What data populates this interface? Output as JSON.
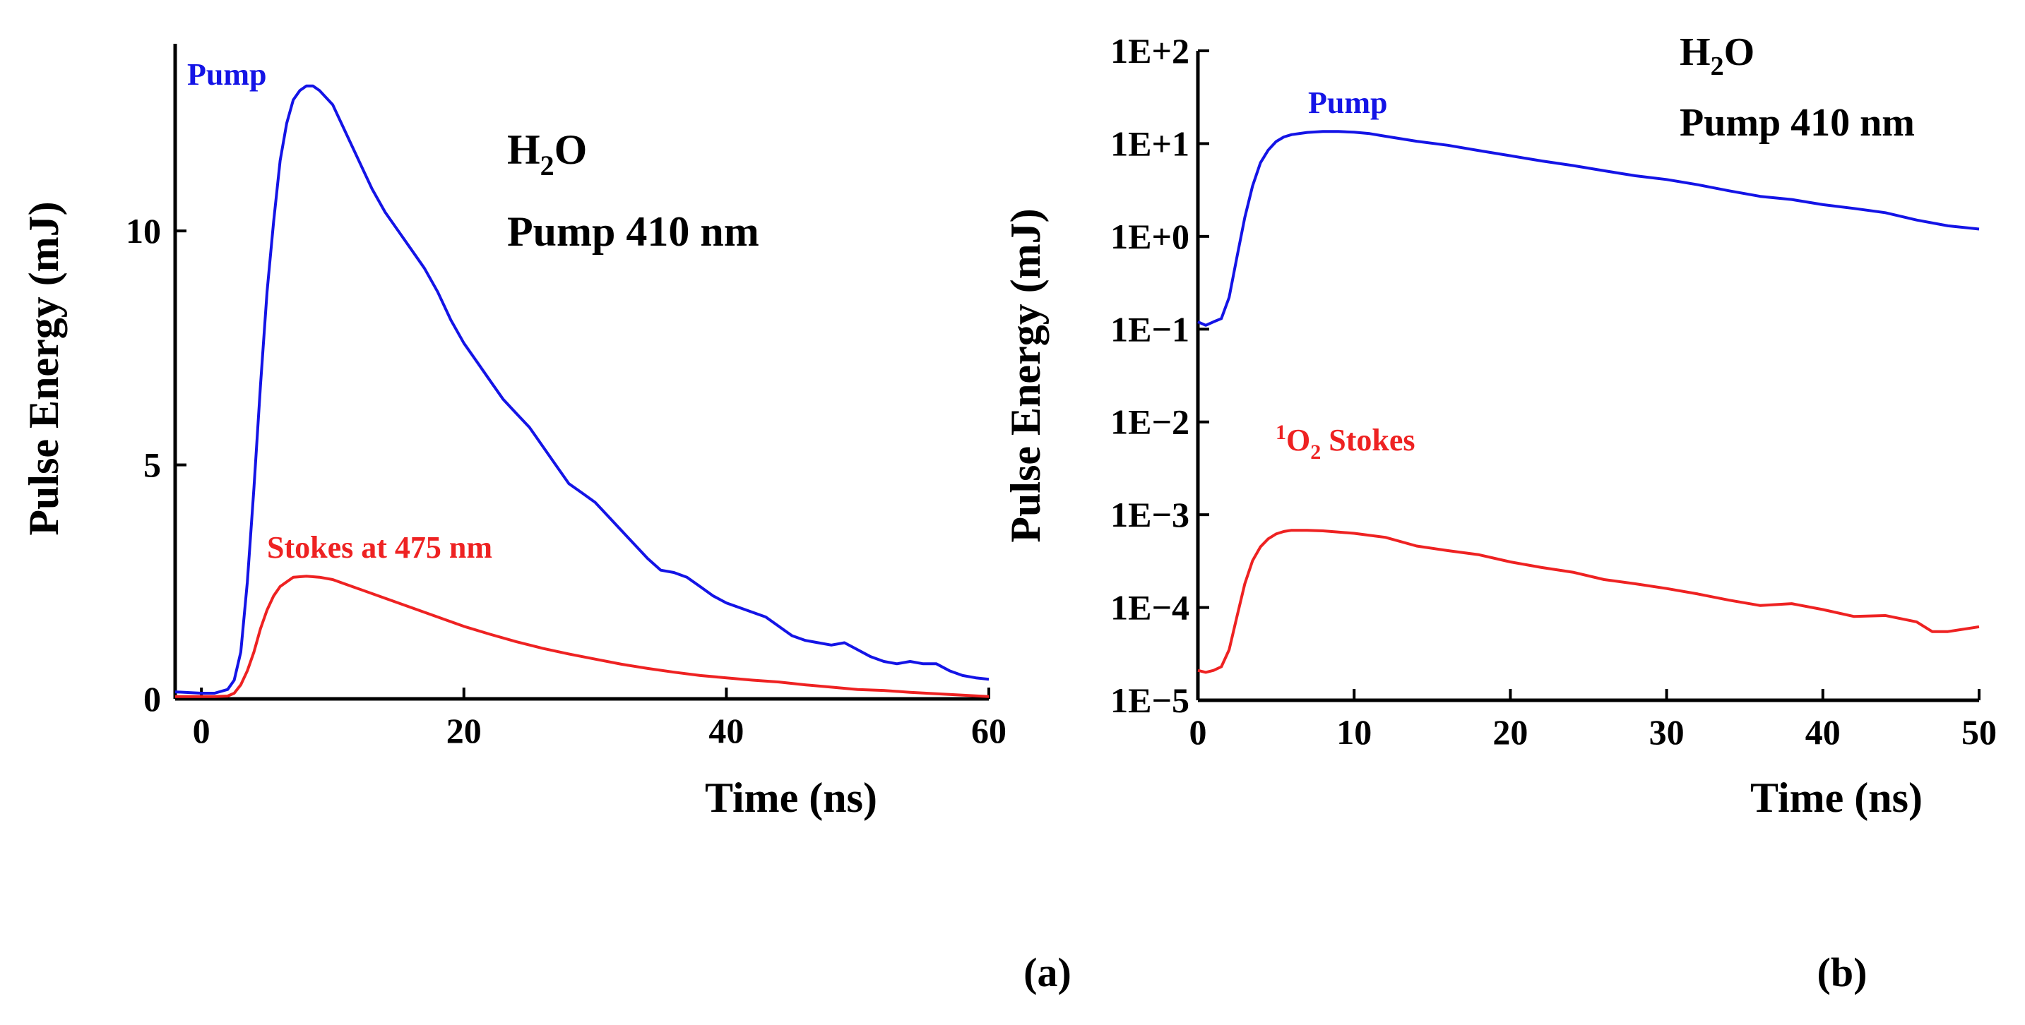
{
  "chart_data": [
    {
      "type": "line",
      "panel_label": "(a)",
      "xlabel": "Time (ns)",
      "ylabel": "Pulse Energy (mJ)",
      "xlim": [
        -2,
        60
      ],
      "ylim": [
        0,
        14
      ],
      "xticks": [
        0,
        20,
        40,
        60
      ],
      "yticks": [
        0,
        5,
        10
      ],
      "xtick_labels": [
        "0",
        "20",
        "40",
        "60"
      ],
      "ytick_labels": [
        "0",
        "5",
        "10"
      ],
      "annotation_molecule": "H₂O",
      "annotation_molecule_base": "H",
      "annotation_molecule_sub": "2",
      "annotation_molecule_tail": "O",
      "annotation_pump": "Pump 410 nm",
      "series": [
        {
          "name": "Pump",
          "color": "#1414e6",
          "x": [
            -2,
            0,
            1,
            2,
            2.5,
            3,
            3.5,
            4,
            4.5,
            5,
            5.5,
            6,
            6.5,
            7,
            7.5,
            8,
            8.5,
            9,
            10,
            11,
            12,
            13,
            14,
            15,
            16,
            17,
            18,
            19,
            20,
            21,
            22,
            23,
            24,
            25,
            26,
            27,
            28,
            29,
            30,
            31,
            32,
            33,
            34,
            35,
            36,
            37,
            38,
            39,
            40,
            41,
            42,
            43,
            44,
            45,
            46,
            47,
            48,
            49,
            50,
            51,
            52,
            53,
            54,
            55,
            56,
            57,
            58,
            59,
            60
          ],
          "y": [
            0.15,
            0.12,
            0.12,
            0.2,
            0.4,
            1.0,
            2.5,
            4.5,
            6.7,
            8.7,
            10.2,
            11.5,
            12.3,
            12.8,
            13.0,
            13.1,
            13.1,
            13.0,
            12.7,
            12.1,
            11.5,
            10.9,
            10.4,
            10.0,
            9.6,
            9.2,
            8.7,
            8.1,
            7.6,
            7.2,
            6.8,
            6.4,
            6.1,
            5.8,
            5.4,
            5.0,
            4.6,
            4.4,
            4.2,
            3.9,
            3.6,
            3.3,
            3.0,
            2.75,
            2.7,
            2.6,
            2.4,
            2.2,
            2.05,
            1.95,
            1.85,
            1.75,
            1.55,
            1.35,
            1.25,
            1.2,
            1.15,
            1.2,
            1.05,
            0.9,
            0.8,
            0.75,
            0.8,
            0.75,
            0.75,
            0.6,
            0.5,
            0.45,
            0.42
          ]
        },
        {
          "name": "Stokes at 475 nm",
          "color": "#ee2222",
          "x": [
            -2,
            0,
            1,
            2,
            2.5,
            3,
            3.5,
            4,
            4.5,
            5,
            5.5,
            6,
            6.5,
            7,
            8,
            9,
            10,
            11,
            12,
            14,
            16,
            18,
            20,
            22,
            24,
            26,
            28,
            30,
            32,
            34,
            36,
            38,
            40,
            42,
            44,
            46,
            48,
            50,
            52,
            54,
            56,
            58,
            60
          ],
          "y": [
            0.05,
            0.05,
            0.05,
            0.06,
            0.12,
            0.3,
            0.6,
            1.0,
            1.5,
            1.9,
            2.2,
            2.4,
            2.5,
            2.6,
            2.62,
            2.6,
            2.55,
            2.45,
            2.35,
            2.15,
            1.95,
            1.75,
            1.55,
            1.38,
            1.22,
            1.08,
            0.96,
            0.85,
            0.74,
            0.65,
            0.57,
            0.5,
            0.45,
            0.4,
            0.36,
            0.3,
            0.25,
            0.2,
            0.18,
            0.14,
            0.11,
            0.08,
            0.05
          ]
        }
      ],
      "labels": {
        "pump": "Pump",
        "stokes": "Stokes at 475 nm"
      }
    },
    {
      "type": "line",
      "panel_label": "(b)",
      "xlabel": "Time (ns)",
      "ylabel": "Pulse Energy (mJ)",
      "xlim": [
        0,
        50
      ],
      "ylim_log10": [
        -5,
        2
      ],
      "yscale": "log",
      "xticks": [
        0,
        10,
        20,
        30,
        40,
        50
      ],
      "xtick_labels": [
        "0",
        "10",
        "20",
        "30",
        "40",
        "50"
      ],
      "yticks_log10": [
        2,
        1,
        0,
        -1,
        -2,
        -3,
        -4,
        -5
      ],
      "ytick_labels": [
        "1E+2",
        "1E+1",
        "1E+0",
        "1E−1",
        "1E−2",
        "1E−3",
        "1E−4",
        "1E−5"
      ],
      "annotation_molecule": "H₂O",
      "annotation_molecule_base": "H",
      "annotation_molecule_sub": "2",
      "annotation_molecule_tail": "O",
      "annotation_pump": "Pump 410 nm",
      "series": [
        {
          "name": "Pump",
          "color": "#1414e6",
          "x": [
            0,
            0.5,
            1,
            1.5,
            2,
            2.5,
            3,
            3.5,
            4,
            4.5,
            5,
            5.5,
            6,
            7,
            8,
            9,
            10,
            11,
            12,
            14,
            16,
            18,
            20,
            22,
            24,
            26,
            28,
            30,
            32,
            34,
            36,
            38,
            40,
            42,
            44,
            46,
            48,
            50
          ],
          "y": [
            0.12,
            0.11,
            0.12,
            0.13,
            0.22,
            0.6,
            1.6,
            3.5,
            6.2,
            8.5,
            10.5,
            11.8,
            12.5,
            13.2,
            13.5,
            13.5,
            13.3,
            12.8,
            12.0,
            10.6,
            9.6,
            8.4,
            7.4,
            6.5,
            5.8,
            5.1,
            4.5,
            4.1,
            3.6,
            3.1,
            2.7,
            2.5,
            2.2,
            2.0,
            1.8,
            1.5,
            1.3,
            1.2
          ]
        },
        {
          "name": "1O2 Stokes",
          "color": "#ee2222",
          "x": [
            0,
            0.5,
            1,
            1.5,
            2,
            2.5,
            3,
            3.5,
            4,
            4.5,
            5,
            5.5,
            6,
            7,
            8,
            9,
            10,
            12,
            14,
            16,
            18,
            20,
            22,
            24,
            26,
            28,
            30,
            32,
            34,
            36,
            38,
            40,
            42,
            44,
            46,
            47,
            48,
            50
          ],
          "y": [
            2.1e-05,
            2e-05,
            2.1e-05,
            2.3e-05,
            3.5e-05,
            8e-05,
            0.00018,
            0.00032,
            0.00045,
            0.00055,
            0.00062,
            0.00066,
            0.00068,
            0.00068,
            0.00067,
            0.00065,
            0.00063,
            0.00057,
            0.00046,
            0.00041,
            0.00037,
            0.00031,
            0.00027,
            0.00024,
            0.0002,
            0.00018,
            0.00016,
            0.00014,
            0.00012,
            0.000105,
            0.00011,
            9.5e-05,
            8e-05,
            8.2e-05,
            7e-05,
            5.5e-05,
            5.5e-05,
            6.2e-05
          ]
        }
      ],
      "labels": {
        "pump": "Pump",
        "stokes_sup": "1",
        "stokes_base": "O",
        "stokes_sub": "2",
        "stokes_tail": " Stokes"
      }
    }
  ]
}
